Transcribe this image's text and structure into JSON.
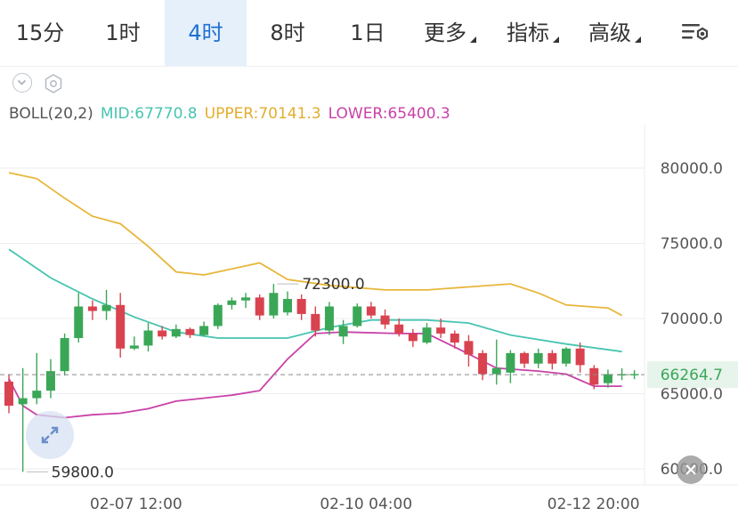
{
  "tabs": [
    {
      "label": "15分",
      "active": false,
      "dropdown": false
    },
    {
      "label": "1时",
      "active": false,
      "dropdown": false
    },
    {
      "label": "4时",
      "active": true,
      "dropdown": false
    },
    {
      "label": "8时",
      "active": false,
      "dropdown": false
    },
    {
      "label": "1日",
      "active": false,
      "dropdown": false
    },
    {
      "label": "更多",
      "active": false,
      "dropdown": true
    },
    {
      "label": "指标",
      "active": false,
      "dropdown": true
    },
    {
      "label": "高级",
      "active": false,
      "dropdown": true
    }
  ],
  "icons": {
    "settings": "chart-settings-icon",
    "collapse": "chevron-down-icon",
    "indicator": "hexagon-settings-icon",
    "expand": "expand-arrows-icon",
    "close": "close-icon"
  },
  "boll": {
    "name": "BOLL(20,2)",
    "mid": "MID:67770.8",
    "upper": "UPPER:70141.3",
    "lower": "LOWER:65400.3"
  },
  "colors": {
    "up": "#3aa757",
    "down": "#d9434f",
    "mid": "#48c4b0",
    "upper": "#e8b63a",
    "lower": "#c941a7",
    "accent": "#1f6fd1",
    "current_badge": "#e6f4ec"
  },
  "chart_data": {
    "type": "candlestick",
    "x_labels": [
      "02-07 12:00",
      "02-10 04:00",
      "02-12 20:00"
    ],
    "y_ticks": [
      "80000.0",
      "75000.0",
      "70000.0",
      "65000.0",
      "60000.0"
    ],
    "high_label": "72300.0",
    "high_value": 72300,
    "low_label": "59800.0",
    "low_value": 59800,
    "current_label": "66264.7",
    "current_value": 66264.7,
    "candles": [
      [
        65800,
        64200,
        66300,
        63700
      ],
      [
        64300,
        64700,
        66700,
        59800
      ],
      [
        64700,
        65200,
        67700,
        64300
      ],
      [
        65200,
        66500,
        67300,
        64700
      ],
      [
        66500,
        68700,
        69000,
        66200
      ],
      [
        68700,
        70800,
        71700,
        68400
      ],
      [
        70800,
        70500,
        71200,
        69900
      ],
      [
        70500,
        70900,
        71900,
        69900
      ],
      [
        70900,
        68000,
        71700,
        67400
      ],
      [
        68000,
        68200,
        68800,
        67900
      ],
      [
        68200,
        69200,
        69700,
        67800
      ],
      [
        69200,
        68800,
        69500,
        68600
      ],
      [
        68800,
        69300,
        69600,
        68700
      ],
      [
        69300,
        68900,
        69400,
        68700
      ],
      [
        68900,
        69500,
        69800,
        68800
      ],
      [
        69500,
        70900,
        71000,
        69300
      ],
      [
        70900,
        71200,
        71400,
        70600
      ],
      [
        71200,
        71400,
        71700,
        70700
      ],
      [
        71400,
        70200,
        71600,
        69900
      ],
      [
        70200,
        71700,
        72300,
        70000
      ],
      [
        70400,
        71300,
        71800,
        70200
      ],
      [
        71300,
        70300,
        71600,
        69900
      ],
      [
        70300,
        69200,
        70800,
        68800
      ],
      [
        69200,
        70800,
        71100,
        68900
      ],
      [
        68800,
        69500,
        69900,
        68300
      ],
      [
        69500,
        70800,
        71000,
        69400
      ],
      [
        70800,
        70200,
        71100,
        70000
      ],
      [
        70200,
        69600,
        70600,
        69300
      ],
      [
        69600,
        69000,
        70000,
        68800
      ],
      [
        69000,
        68500,
        69300,
        68100
      ],
      [
        68400,
        69400,
        69700,
        68300
      ],
      [
        69400,
        69000,
        70000,
        68700
      ],
      [
        69000,
        68400,
        69200,
        68000
      ],
      [
        68500,
        67600,
        68900,
        66800
      ],
      [
        67700,
        66300,
        67900,
        65900
      ],
      [
        66300,
        66700,
        68600,
        65600
      ],
      [
        66400,
        67700,
        67900,
        65700
      ],
      [
        67700,
        67000,
        67800,
        66700
      ],
      [
        67000,
        67700,
        68000,
        66700
      ],
      [
        67700,
        67000,
        67900,
        66600
      ],
      [
        67000,
        68000,
        68100,
        66800
      ],
      [
        68000,
        66900,
        68400,
        66400
      ],
      [
        66700,
        65600,
        66900,
        65300
      ],
      [
        65700,
        66300,
        66600,
        65400
      ],
      [
        66300,
        66300,
        66700,
        65900
      ]
    ],
    "mid_line": [
      [
        0,
        74600
      ],
      [
        3,
        72700
      ],
      [
        6,
        71300
      ],
      [
        9,
        70100
      ],
      [
        12,
        69100
      ],
      [
        15,
        68700
      ],
      [
        20,
        68700
      ],
      [
        23,
        69400
      ],
      [
        26,
        69900
      ],
      [
        30,
        69900
      ],
      [
        33,
        69700
      ],
      [
        36,
        68900
      ],
      [
        40,
        68300
      ],
      [
        44,
        67800
      ]
    ],
    "upper_line": [
      [
        0,
        79700
      ],
      [
        2,
        79300
      ],
      [
        4,
        78000
      ],
      [
        6,
        76800
      ],
      [
        8,
        76300
      ],
      [
        10,
        74800
      ],
      [
        12,
        73100
      ],
      [
        14,
        72900
      ],
      [
        18,
        73700
      ],
      [
        20,
        72600
      ],
      [
        23,
        72200
      ],
      [
        27,
        71900
      ],
      [
        30,
        71900
      ],
      [
        33,
        72100
      ],
      [
        36,
        72300
      ],
      [
        38,
        71700
      ],
      [
        40,
        70900
      ],
      [
        43,
        70700
      ],
      [
        44,
        70200
      ]
    ],
    "lower_line": [
      [
        0,
        66000
      ],
      [
        1,
        64200
      ],
      [
        2,
        63600
      ],
      [
        4,
        63400
      ],
      [
        6,
        63600
      ],
      [
        8,
        63700
      ],
      [
        10,
        64000
      ],
      [
        12,
        64500
      ],
      [
        16,
        64900
      ],
      [
        18,
        65200
      ],
      [
        20,
        67300
      ],
      [
        22,
        69000
      ],
      [
        24,
        69100
      ],
      [
        28,
        69000
      ],
      [
        30,
        69000
      ],
      [
        32,
        68100
      ],
      [
        35,
        66700
      ],
      [
        38,
        66500
      ],
      [
        40,
        66300
      ],
      [
        42,
        65500
      ],
      [
        44,
        65500
      ]
    ],
    "ylim": [
      59000,
      82000
    ]
  }
}
